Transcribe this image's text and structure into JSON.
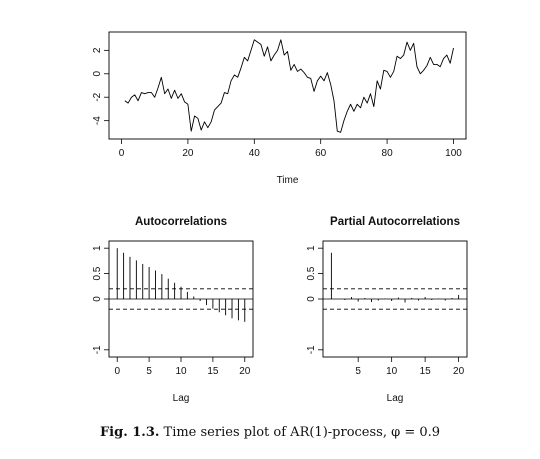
{
  "caption": {
    "label": "Fig. 1.3.",
    "text": "Time series plot of AR(1)-process, φ = 0.9"
  },
  "chart_data": [
    {
      "type": "line",
      "title": "",
      "xlabel": "Time",
      "ylabel": "",
      "xlim": [
        0,
        100
      ],
      "ylim": [
        -5.2,
        3.2
      ],
      "xticks": [
        0,
        20,
        40,
        60,
        80,
        100
      ],
      "yticks": [
        -4,
        -2,
        0,
        2
      ],
      "x": [
        1,
        2,
        3,
        4,
        5,
        6,
        7,
        8,
        9,
        10,
        11,
        12,
        13,
        14,
        15,
        16,
        17,
        18,
        19,
        20,
        21,
        22,
        23,
        24,
        25,
        26,
        27,
        28,
        29,
        30,
        31,
        32,
        33,
        34,
        35,
        36,
        37,
        38,
        39,
        40,
        41,
        42,
        43,
        44,
        45,
        46,
        47,
        48,
        49,
        50,
        51,
        52,
        53,
        54,
        55,
        56,
        57,
        58,
        59,
        60,
        61,
        62,
        63,
        64,
        65,
        66,
        67,
        68,
        69,
        70,
        71,
        72,
        73,
        74,
        75,
        76,
        77,
        78,
        79,
        80,
        81,
        82,
        83,
        84,
        85,
        86,
        87,
        88,
        89,
        90,
        91,
        92,
        93,
        94,
        95,
        96,
        97,
        98,
        99,
        100
      ],
      "values": [
        -2.3,
        -2.5,
        -2.0,
        -1.8,
        -2.3,
        -1.6,
        -1.7,
        -1.6,
        -1.6,
        -2.0,
        -1.2,
        -0.3,
        -1.7,
        -1.3,
        -2.1,
        -1.4,
        -2.1,
        -1.7,
        -2.4,
        -2.6,
        -4.9,
        -3.6,
        -3.8,
        -4.8,
        -4.1,
        -4.6,
        -4.1,
        -3.1,
        -2.8,
        -2.5,
        -1.6,
        -1.7,
        -0.6,
        -0.1,
        -0.3,
        0.5,
        1.4,
        1.1,
        2.0,
        2.9,
        2.7,
        2.5,
        1.5,
        2.3,
        1.1,
        1.6,
        2.0,
        2.9,
        1.6,
        1.9,
        0.3,
        0.8,
        0.2,
        0.4,
        0.1,
        -0.3,
        -0.4,
        -1.5,
        -0.6,
        -0.2,
        -0.6,
        0.1,
        -0.9,
        -2.3,
        -4.9,
        -5.0,
        -4.0,
        -3.2,
        -2.6,
        -3.2,
        -2.6,
        -2.9,
        -2.0,
        -2.5,
        -1.7,
        -2.8,
        -0.6,
        -1.3,
        0.3,
        0.2,
        -0.3,
        0.2,
        1.5,
        1.3,
        1.6,
        2.7,
        2.0,
        2.6,
        0.6,
        0.0,
        0.3,
        0.7,
        1.4,
        0.8,
        0.8,
        0.6,
        1.3,
        1.6,
        0.9,
        2.2
      ]
    },
    {
      "type": "bar",
      "title": "Autocorrelations",
      "xlabel": "Lag",
      "ylabel": "",
      "xlim": [
        -0.5,
        20.5
      ],
      "ylim": [
        -1.05,
        1.05
      ],
      "xticks": [
        0,
        5,
        10,
        15,
        20
      ],
      "yticks": [
        -1.0,
        0.0,
        0.5,
        1.0
      ],
      "confidence_bounds": [
        -0.2,
        0.2
      ],
      "categories": [
        0,
        1,
        2,
        3,
        4,
        5,
        6,
        7,
        8,
        9,
        10,
        11,
        12,
        13,
        14,
        15,
        16,
        17,
        18,
        19,
        20
      ],
      "values": [
        1.0,
        0.91,
        0.83,
        0.76,
        0.69,
        0.63,
        0.56,
        0.49,
        0.4,
        0.32,
        0.24,
        0.14,
        0.05,
        -0.04,
        -0.12,
        -0.19,
        -0.26,
        -0.32,
        -0.38,
        -0.42,
        -0.45
      ]
    },
    {
      "type": "bar",
      "title": "Partial Autocorrelations",
      "xlabel": "Lag",
      "ylabel": "",
      "xlim": [
        0.5,
        20.5
      ],
      "ylim": [
        -1.05,
        1.05
      ],
      "xticks": [
        5,
        10,
        15,
        20
      ],
      "yticks": [
        -1.0,
        0.0,
        0.5,
        1.0
      ],
      "confidence_bounds": [
        -0.2,
        0.2
      ],
      "categories": [
        1,
        2,
        3,
        4,
        5,
        6,
        7,
        8,
        9,
        10,
        11,
        12,
        13,
        14,
        15,
        16,
        17,
        18,
        19,
        20
      ],
      "values": [
        0.91,
        0.0,
        -0.02,
        0.04,
        -0.05,
        0.02,
        -0.06,
        -0.03,
        0.01,
        -0.04,
        0.03,
        -0.07,
        0.02,
        -0.03,
        0.04,
        -0.02,
        0.01,
        -0.03,
        0.02,
        0.08
      ]
    }
  ]
}
